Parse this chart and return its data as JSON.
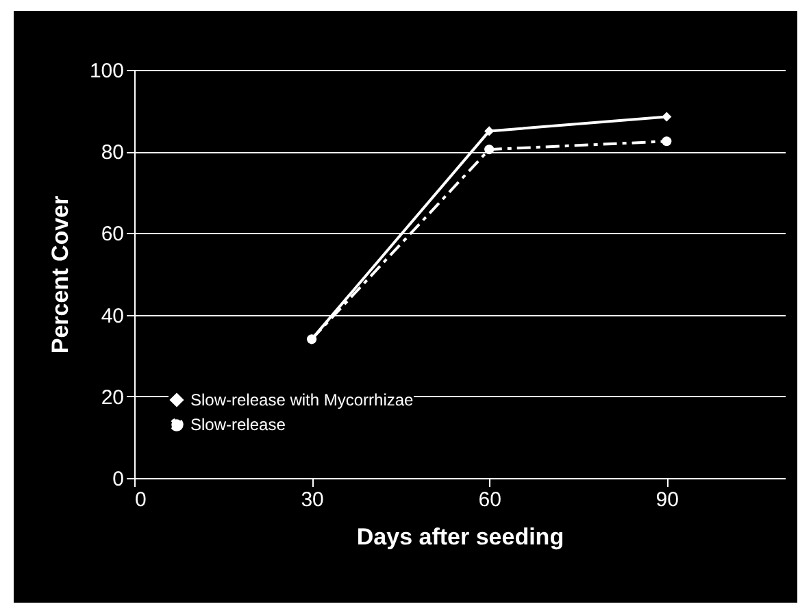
{
  "chart_data": {
    "type": "line",
    "xlabel": "Days after seeding",
    "ylabel": "Percent Cover",
    "x": [
      30,
      60,
      90
    ],
    "series": [
      {
        "name": "Slow-release with Mycorrhizae",
        "color": "#ffffff",
        "values": [
          34,
          85,
          88.5
        ],
        "marker": "diamond",
        "line_style": "solid"
      },
      {
        "name": "Slow-release",
        "color": "#ffffff",
        "values": [
          34,
          80.5,
          82.5
        ],
        "marker": "circle",
        "line_style": "dashed"
      }
    ],
    "xlim": [
      0,
      110
    ],
    "xticks": [
      0,
      30,
      60,
      90
    ],
    "ylim": [
      0,
      100
    ],
    "yticks": [
      0,
      20,
      40,
      60,
      80,
      100
    ],
    "grid": "y",
    "legend": "bottom left"
  }
}
